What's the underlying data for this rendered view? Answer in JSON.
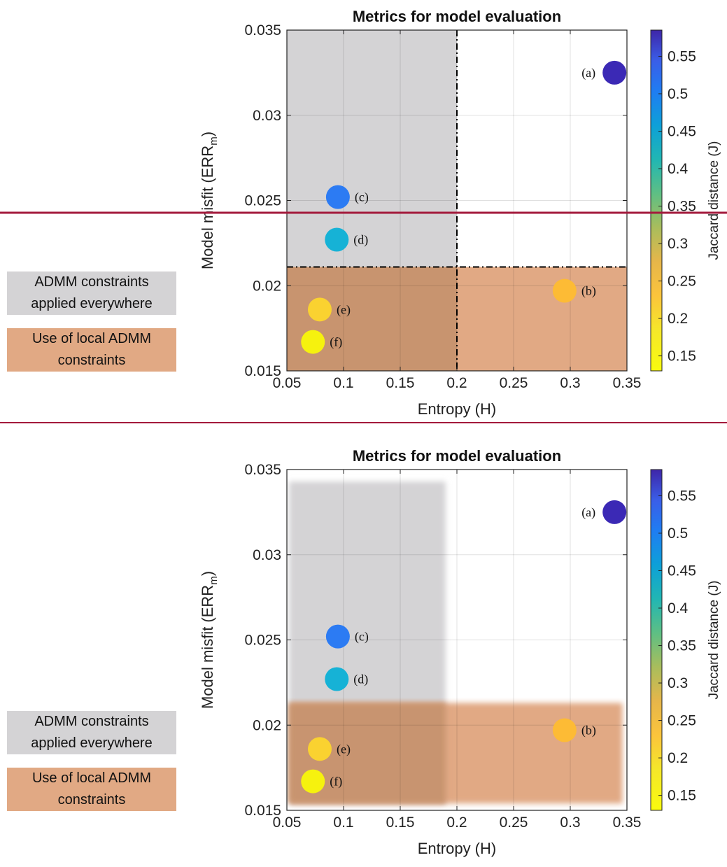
{
  "legend": {
    "grey_label_line1": "ADMM constraints",
    "grey_label_line2": "applied everywhere",
    "orange_label_line1": "Use of local ADMM",
    "orange_label_line2": "constraints",
    "grey_color": "#d4d3d5",
    "orange_color": "#e1a984",
    "overlap_color": "#c8946f"
  },
  "divider_color": "#a31a3c",
  "chart_data": [
    {
      "type": "scatter",
      "title": "Metrics for model evaluation",
      "xlabel": "Entropy (H)",
      "ylabel": "Model misfit (ERR_m)",
      "xlim": [
        0.05,
        0.35
      ],
      "ylim": [
        0.015,
        0.035
      ],
      "xticks": [
        "0.05",
        "0.1",
        "0.15",
        "0.2",
        "0.25",
        "0.3",
        "0.35"
      ],
      "yticks": [
        "0.015",
        "0.02",
        "0.025",
        "0.03",
        "0.035"
      ],
      "grid": true,
      "thresholds": {
        "entropy": 0.2,
        "misfit": 0.0211
      },
      "colorbar": {
        "label": "Jaccard distance (J)",
        "range": [
          0.13,
          0.585
        ],
        "ticks": [
          "0.15",
          "0.2",
          "0.25",
          "0.3",
          "0.35",
          "0.4",
          "0.45",
          "0.5",
          "0.55"
        ],
        "colormap": "parula (yellow to dark blue)"
      },
      "points": [
        {
          "label": "(a)",
          "x": 0.339,
          "y": 0.0325,
          "j": 0.58,
          "color": "#3b29b5"
        },
        {
          "label": "(b)",
          "x": 0.295,
          "y": 0.0197,
          "j": 0.2,
          "color": "#fdbb35"
        },
        {
          "label": "(c)",
          "x": 0.095,
          "y": 0.0252,
          "j": 0.45,
          "color": "#2c7bf3"
        },
        {
          "label": "(d)",
          "x": 0.094,
          "y": 0.0227,
          "j": 0.37,
          "color": "#16b2d6"
        },
        {
          "label": "(e)",
          "x": 0.079,
          "y": 0.0186,
          "j": 0.18,
          "color": "#fad230"
        },
        {
          "label": "(f)",
          "x": 0.073,
          "y": 0.0167,
          "j": 0.14,
          "color": "#f6f20e"
        }
      ]
    },
    {
      "type": "scatter",
      "title": "Metrics for model evaluation",
      "xlabel": "Entropy (H)",
      "ylabel": "Model misfit (ERR_m)",
      "xlim": [
        0.05,
        0.35
      ],
      "ylim": [
        0.015,
        0.035
      ],
      "xticks": [
        "0.05",
        "0.1",
        "0.15",
        "0.2",
        "0.25",
        "0.3",
        "0.35"
      ],
      "yticks": [
        "0.015",
        "0.02",
        "0.025",
        "0.03",
        "0.035"
      ],
      "grid": true,
      "colorbar": {
        "label": "Jaccard distance (J)",
        "range": [
          0.13,
          0.585
        ],
        "ticks": [
          "0.15",
          "0.2",
          "0.25",
          "0.3",
          "0.35",
          "0.4",
          "0.45",
          "0.5",
          "0.55"
        ],
        "colormap": "parula (yellow to dark blue)"
      },
      "points": [
        {
          "label": "(a)",
          "x": 0.339,
          "y": 0.0325,
          "j": 0.58,
          "color": "#3b29b5"
        },
        {
          "label": "(b)",
          "x": 0.295,
          "y": 0.0197,
          "j": 0.2,
          "color": "#fdbb35"
        },
        {
          "label": "(c)",
          "x": 0.095,
          "y": 0.0252,
          "j": 0.45,
          "color": "#2c7bf3"
        },
        {
          "label": "(d)",
          "x": 0.094,
          "y": 0.0227,
          "j": 0.37,
          "color": "#16b2d6"
        },
        {
          "label": "(e)",
          "x": 0.079,
          "y": 0.0186,
          "j": 0.18,
          "color": "#fad230"
        },
        {
          "label": "(f)",
          "x": 0.073,
          "y": 0.0167,
          "j": 0.14,
          "color": "#f6f20e"
        }
      ]
    }
  ]
}
